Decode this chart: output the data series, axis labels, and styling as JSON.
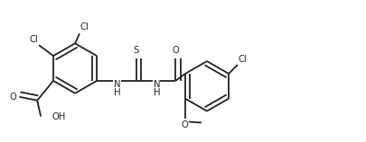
{
  "background": "#ffffff",
  "bond_color": "#222222",
  "text_color": "#222222",
  "line_width": 1.3,
  "font_size": 7.2,
  "figsize": [
    4.06,
    1.58
  ],
  "dpi": 100,
  "xlim": [
    0,
    4.06
  ],
  "ylim": [
    0,
    1.58
  ]
}
